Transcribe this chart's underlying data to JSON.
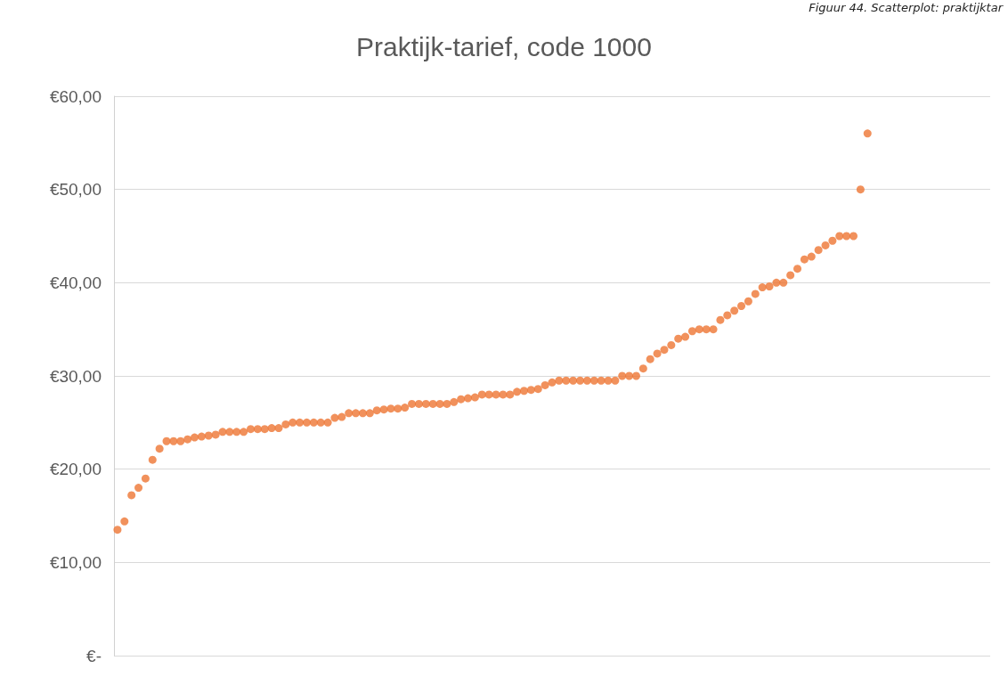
{
  "chart_data": {
    "type": "scatter",
    "title": "Praktijk-tarief, code 1000",
    "annotations": [
      "Figuur 44. Scatterplot: praktijktar"
    ],
    "categories": [
      null,
      null,
      null,
      null,
      null,
      null,
      null,
      null,
      null,
      null,
      null,
      null,
      null,
      null,
      null,
      null,
      null,
      null,
      null,
      null,
      null,
      null,
      null,
      null,
      null,
      null,
      null,
      null,
      null,
      null,
      null,
      null,
      null,
      null,
      null,
      null,
      null,
      null,
      null,
      null,
      null,
      null,
      null,
      null,
      null,
      null,
      null,
      null,
      null,
      null,
      null,
      null,
      null,
      null,
      null,
      null,
      null,
      null,
      null,
      null,
      null,
      null,
      null,
      null,
      null,
      null,
      null,
      null,
      null,
      null,
      null,
      null,
      null,
      null,
      null,
      null,
      null,
      null,
      null,
      null,
      null,
      null,
      null,
      null,
      null,
      null,
      null,
      null,
      null,
      null,
      null,
      null,
      null,
      null,
      null,
      null,
      null,
      null,
      null,
      null,
      null,
      null,
      null,
      null,
      null,
      null,
      null,
      null,
      null,
      null,
      null,
      null,
      null,
      null,
      null,
      null,
      null,
      null,
      null,
      null,
      null,
      null,
      null,
      null,
      null
    ],
    "values": [
      13.5,
      14.4,
      17.2,
      18,
      19,
      21,
      22.2,
      23,
      23,
      23,
      23.2,
      23.4,
      23.5,
      23.6,
      23.7,
      24,
      24,
      24,
      24,
      24.3,
      24.3,
      24.3,
      24.4,
      24.4,
      24.8,
      25,
      25,
      25,
      25,
      25,
      25,
      25.5,
      25.6,
      26,
      26,
      26,
      26,
      26.3,
      26.4,
      26.5,
      26.5,
      26.6,
      27,
      27,
      27,
      27,
      27,
      27,
      27.2,
      27.5,
      27.6,
      27.7,
      28,
      28,
      28,
      28,
      28,
      28.3,
      28.4,
      28.5,
      28.6,
      29,
      29.3,
      29.5,
      29.5,
      29.5,
      29.5,
      29.5,
      29.5,
      29.5,
      29.5,
      29.5,
      30,
      30,
      30,
      30.8,
      31.8,
      32.4,
      32.8,
      33.3,
      34,
      34.2,
      34.8,
      35,
      35,
      35,
      36,
      36.5,
      37,
      37.5,
      38,
      38.8,
      39.5,
      39.6,
      40,
      40,
      40.8,
      41.5,
      42.5,
      42.8,
      43.5,
      44,
      44.5,
      45,
      45,
      45,
      50,
      56,
      null,
      null,
      null,
      null,
      null,
      null,
      null,
      null,
      null,
      null,
      null,
      null,
      null,
      null,
      null,
      null,
      null
    ],
    "color": "#ed7533",
    "marker": "circle",
    "grid": "y",
    "ylim": [
      0,
      60
    ],
    "yticks": [
      {
        "value": 0,
        "label": "€-"
      },
      {
        "value": 10,
        "label": "€10,00"
      },
      {
        "value": 20,
        "label": "€20,00"
      },
      {
        "value": 30,
        "label": "€30,00"
      },
      {
        "value": 40,
        "label": "€40,00"
      },
      {
        "value": 50,
        "label": "€50,00"
      },
      {
        "value": 60,
        "label": "€60,00"
      }
    ]
  }
}
